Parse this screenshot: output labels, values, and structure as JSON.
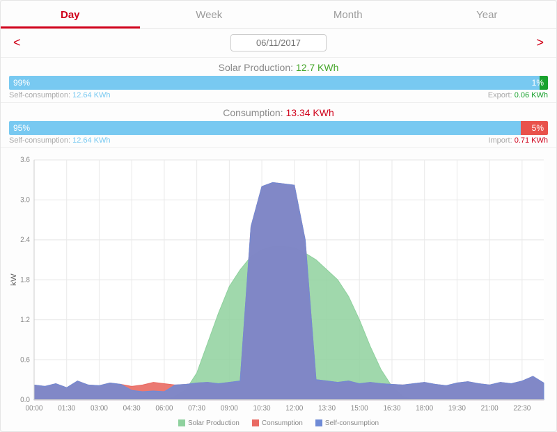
{
  "tabs": {
    "items": [
      "Day",
      "Week",
      "Month",
      "Year"
    ],
    "active": 0
  },
  "nav": {
    "prev": "<",
    "next": ">"
  },
  "date": "06/11/2017",
  "colors": {
    "accent": "#d0021b",
    "solar_value": "#46a62b",
    "consumption_value": "#d0021b",
    "bar_blue": "#78c9f1",
    "bar_green": "#19a22e",
    "bar_red": "#e9524b",
    "self_val": "#78c9f1",
    "export_val": "#19a22e",
    "import_val": "#d0021b"
  },
  "solar": {
    "title": "Solar Production:",
    "value": "12.7 KWh",
    "bar": {
      "left_pct": 99,
      "left_label": "99%",
      "right_label": "1%",
      "left_color": "#78c9f1",
      "right_color": "#19a22e"
    },
    "sub_left": {
      "label": "Self-consumption:",
      "value": "12.64 KWh"
    },
    "sub_right": {
      "label": "Export:",
      "value": "0.06 KWh"
    }
  },
  "consumption": {
    "title": "Consumption:",
    "value": "13.34 KWh",
    "bar": {
      "left_pct": 95,
      "left_label": "95%",
      "right_label": "5%",
      "left_color": "#78c9f1",
      "right_color": "#e9524b"
    },
    "sub_left": {
      "label": "Self-consumption:",
      "value": "12.64 KWh"
    },
    "sub_right": {
      "label": "Import:",
      "value": "0.71 KWh"
    }
  },
  "chart": {
    "type": "area",
    "ylabel": "kW",
    "ylim": [
      0,
      3.6
    ],
    "ytick_step": 0.6,
    "x_count": 48,
    "x_labels": [
      "00:00",
      "01:30",
      "03:00",
      "04:30",
      "06:00",
      "07:30",
      "09:00",
      "10:30",
      "12:00",
      "13:30",
      "15:00",
      "16:30",
      "18:00",
      "19:30",
      "21:00",
      "22:30"
    ],
    "background_color": "#ffffff",
    "grid_color": "#e9e9e9",
    "series": {
      "solar_production": {
        "color": "#8fd19e",
        "opacity": 0.85,
        "data": [
          0,
          0,
          0,
          0,
          0,
          0,
          0,
          0,
          0,
          0,
          0,
          0,
          0,
          0.05,
          0.15,
          0.4,
          0.85,
          1.3,
          1.7,
          1.95,
          2.15,
          2.25,
          2.3,
          2.3,
          2.28,
          2.2,
          2.1,
          1.95,
          1.8,
          1.55,
          1.2,
          0.8,
          0.45,
          0.2,
          0.05,
          0,
          0,
          0,
          0,
          0,
          0,
          0,
          0,
          0,
          0,
          0,
          0,
          0
        ]
      },
      "consumption": {
        "color": "#e96a63",
        "opacity": 0.9,
        "data": [
          0.22,
          0.2,
          0.24,
          0.18,
          0.28,
          0.22,
          0.21,
          0.25,
          0.23,
          0.2,
          0.22,
          0.26,
          0.24,
          0.22,
          0.23,
          0.25,
          0.26,
          0.24,
          0.26,
          0.28,
          2.6,
          3.2,
          3.26,
          3.24,
          3.22,
          2.4,
          0.3,
          0.28,
          0.26,
          0.28,
          0.24,
          0.26,
          0.24,
          0.23,
          0.22,
          0.24,
          0.26,
          0.23,
          0.21,
          0.25,
          0.27,
          0.24,
          0.22,
          0.26,
          0.24,
          0.28,
          0.35,
          0.25
        ]
      },
      "self_consumption": {
        "color": "#6f8bd6",
        "opacity": 0.85,
        "data": [
          0.22,
          0.2,
          0.24,
          0.18,
          0.28,
          0.22,
          0.21,
          0.25,
          0.23,
          0.14,
          0.12,
          0.13,
          0.12,
          0.22,
          0.23,
          0.25,
          0.26,
          0.24,
          0.26,
          0.28,
          2.6,
          3.2,
          3.26,
          3.24,
          3.22,
          2.4,
          0.3,
          0.28,
          0.26,
          0.28,
          0.24,
          0.26,
          0.24,
          0.23,
          0.22,
          0.24,
          0.26,
          0.23,
          0.21,
          0.25,
          0.27,
          0.24,
          0.22,
          0.26,
          0.24,
          0.28,
          0.35,
          0.25
        ]
      }
    },
    "legend": [
      {
        "label": "Solar Production",
        "color": "#8fd19e"
      },
      {
        "label": "Consumption",
        "color": "#e96a63"
      },
      {
        "label": "Self-consumption",
        "color": "#6f8bd6"
      }
    ]
  }
}
